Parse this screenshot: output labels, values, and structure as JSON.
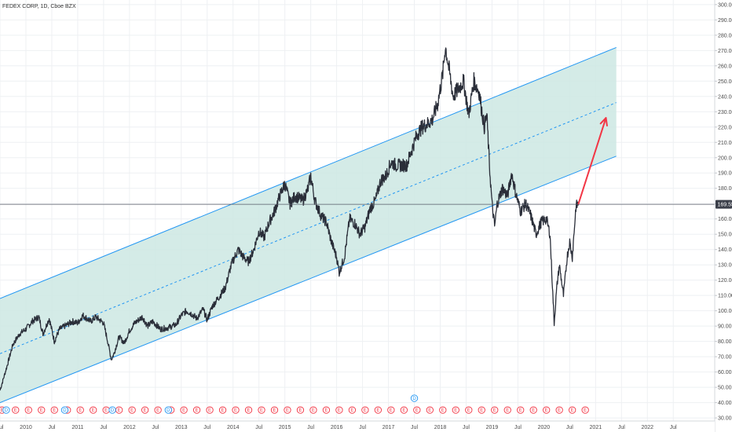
{
  "header": {
    "title": "FEDEX CORP, 1D, Cboe BZX"
  },
  "colors": {
    "channel_fill": "#cde8e3",
    "channel_line": "#2196f3",
    "price_line": "#2a2e39",
    "arrow": "#f23645",
    "grid": "#eef0f3",
    "event_ring": "#f23645",
    "dividend_ring": "#2196f3"
  },
  "chart_data": {
    "type": "line",
    "title": "FEDEX CORP, 1D, Cboe BZX",
    "xlabel": "",
    "ylabel": "",
    "ylim": [
      28,
      303
    ],
    "xlim": [
      2009.5,
      2023.3
    ],
    "y_ticks": [
      "30.00",
      "40.00",
      "50.00",
      "60.00",
      "70.00",
      "80.00",
      "90.00",
      "100.00",
      "110.00",
      "120.00",
      "130.00",
      "140.00",
      "150.00",
      "160.00",
      "170.00",
      "180.00",
      "190.00",
      "200.00",
      "210.00",
      "220.00",
      "230.00",
      "240.00",
      "250.00",
      "260.00",
      "270.00",
      "280.00",
      "290.00",
      "300.00"
    ],
    "x_ticks": [
      {
        "label": "Jul",
        "t": 2009.5
      },
      {
        "label": "2010",
        "t": 2010.0
      },
      {
        "label": "Jul",
        "t": 2010.5
      },
      {
        "label": "2011",
        "t": 2011.0
      },
      {
        "label": "Jul",
        "t": 2011.5
      },
      {
        "label": "2012",
        "t": 2012.0
      },
      {
        "label": "Jul",
        "t": 2012.5
      },
      {
        "label": "2013",
        "t": 2013.0
      },
      {
        "label": "Jul",
        "t": 2013.5
      },
      {
        "label": "2014",
        "t": 2014.0
      },
      {
        "label": "Jul",
        "t": 2014.5
      },
      {
        "label": "2015",
        "t": 2015.0
      },
      {
        "label": "Jul",
        "t": 2015.5
      },
      {
        "label": "2016",
        "t": 2016.0
      },
      {
        "label": "Jul",
        "t": 2016.5
      },
      {
        "label": "2017",
        "t": 2017.0
      },
      {
        "label": "Jul",
        "t": 2017.5
      },
      {
        "label": "2018",
        "t": 2018.0
      },
      {
        "label": "Jul",
        "t": 2018.5
      },
      {
        "label": "2019",
        "t": 2019.0
      },
      {
        "label": "Jul",
        "t": 2019.5
      },
      {
        "label": "2020",
        "t": 2020.0
      },
      {
        "label": "Jul",
        "t": 2020.5
      },
      {
        "label": "2021",
        "t": 2021.0
      },
      {
        "label": "Jul",
        "t": 2021.5
      },
      {
        "label": "2022",
        "t": 2022.0
      },
      {
        "label": "Jul",
        "t": 2022.5
      }
    ],
    "last_price": {
      "label": "169.55",
      "value": 169.55
    },
    "series": [
      {
        "points": [
          [
            2009.5,
            48
          ],
          [
            2009.62,
            62
          ],
          [
            2009.75,
            78
          ],
          [
            2009.88,
            85
          ],
          [
            2010.0,
            88
          ],
          [
            2010.12,
            93
          ],
          [
            2010.25,
            96
          ],
          [
            2010.33,
            85
          ],
          [
            2010.45,
            95
          ],
          [
            2010.55,
            80
          ],
          [
            2010.65,
            88
          ],
          [
            2010.75,
            90
          ],
          [
            2010.9,
            93
          ],
          [
            2011.0,
            92
          ],
          [
            2011.1,
            97
          ],
          [
            2011.25,
            93
          ],
          [
            2011.35,
            96
          ],
          [
            2011.5,
            92
          ],
          [
            2011.58,
            80
          ],
          [
            2011.65,
            68
          ],
          [
            2011.7,
            72
          ],
          [
            2011.8,
            83
          ],
          [
            2011.9,
            79
          ],
          [
            2012.0,
            87
          ],
          [
            2012.1,
            92
          ],
          [
            2012.25,
            96
          ],
          [
            2012.35,
            90
          ],
          [
            2012.45,
            93
          ],
          [
            2012.6,
            88
          ],
          [
            2012.75,
            89
          ],
          [
            2012.9,
            91
          ],
          [
            2013.0,
            97
          ],
          [
            2013.1,
            100
          ],
          [
            2013.2,
            98
          ],
          [
            2013.3,
            95
          ],
          [
            2013.42,
            101
          ],
          [
            2013.5,
            94
          ],
          [
            2013.6,
            103
          ],
          [
            2013.75,
            110
          ],
          [
            2013.85,
            115
          ],
          [
            2013.95,
            128
          ],
          [
            2014.0,
            133
          ],
          [
            2014.1,
            140
          ],
          [
            2014.2,
            135
          ],
          [
            2014.3,
            132
          ],
          [
            2014.4,
            140
          ],
          [
            2014.5,
            152
          ],
          [
            2014.6,
            148
          ],
          [
            2014.7,
            158
          ],
          [
            2014.8,
            165
          ],
          [
            2014.9,
            175
          ],
          [
            2015.0,
            183
          ],
          [
            2015.1,
            170
          ],
          [
            2015.2,
            175
          ],
          [
            2015.35,
            172
          ],
          [
            2015.45,
            180
          ],
          [
            2015.5,
            188
          ],
          [
            2015.58,
            172
          ],
          [
            2015.7,
            162
          ],
          [
            2015.8,
            158
          ],
          [
            2015.9,
            145
          ],
          [
            2016.0,
            135
          ],
          [
            2016.05,
            125
          ],
          [
            2016.15,
            135
          ],
          [
            2016.25,
            160
          ],
          [
            2016.35,
            157
          ],
          [
            2016.45,
            150
          ],
          [
            2016.55,
            155
          ],
          [
            2016.65,
            167
          ],
          [
            2016.75,
            172
          ],
          [
            2016.85,
            185
          ],
          [
            2016.95,
            188
          ],
          [
            2017.05,
            197
          ],
          [
            2017.15,
            195
          ],
          [
            2017.25,
            195
          ],
          [
            2017.35,
            195
          ],
          [
            2017.45,
            205
          ],
          [
            2017.55,
            215
          ],
          [
            2017.65,
            220
          ],
          [
            2017.75,
            222
          ],
          [
            2017.85,
            225
          ],
          [
            2017.95,
            235
          ],
          [
            2018.05,
            255
          ],
          [
            2018.1,
            273
          ],
          [
            2018.15,
            262
          ],
          [
            2018.25,
            240
          ],
          [
            2018.35,
            245
          ],
          [
            2018.45,
            250
          ],
          [
            2018.55,
            228
          ],
          [
            2018.65,
            250
          ],
          [
            2018.75,
            243
          ],
          [
            2018.85,
            220
          ],
          [
            2018.9,
            228
          ],
          [
            2018.95,
            195
          ],
          [
            2019.0,
            170
          ],
          [
            2019.05,
            155
          ],
          [
            2019.1,
            170
          ],
          [
            2019.2,
            180
          ],
          [
            2019.3,
            175
          ],
          [
            2019.38,
            190
          ],
          [
            2019.45,
            178
          ],
          [
            2019.55,
            165
          ],
          [
            2019.65,
            170
          ],
          [
            2019.75,
            162
          ],
          [
            2019.85,
            150
          ],
          [
            2019.95,
            158
          ],
          [
            2020.05,
            160
          ],
          [
            2020.12,
            150
          ],
          [
            2020.2,
            92
          ],
          [
            2020.25,
            115
          ],
          [
            2020.3,
            130
          ],
          [
            2020.38,
            110
          ],
          [
            2020.45,
            135
          ],
          [
            2020.5,
            145
          ],
          [
            2020.55,
            135
          ],
          [
            2020.62,
            168
          ],
          [
            2020.67,
            170
          ]
        ]
      }
    ],
    "channel": {
      "start": {
        "t": 2009.5,
        "upper": 108,
        "mid": 72,
        "lower": 40
      },
      "end": {
        "t": 2021.4,
        "upper": 272,
        "mid": 236,
        "lower": 201
      }
    },
    "arrow": {
      "from": [
        2020.67,
        170
      ],
      "to": [
        2021.2,
        226
      ]
    },
    "event_times": [
      2009.54,
      2009.8,
      2010.05,
      2010.3,
      2010.55,
      2010.8,
      2011.05,
      2011.3,
      2011.55,
      2011.8,
      2012.05,
      2012.3,
      2012.55,
      2012.8,
      2013.05,
      2013.3,
      2013.55,
      2013.8,
      2014.05,
      2014.3,
      2014.55,
      2014.8,
      2015.05,
      2015.3,
      2015.55,
      2015.8,
      2016.05,
      2016.3,
      2016.55,
      2016.8,
      2017.05,
      2017.3,
      2017.55,
      2017.8,
      2018.05,
      2018.3,
      2018.55,
      2018.8,
      2019.05,
      2019.3,
      2019.55,
      2019.8,
      2020.05,
      2020.3,
      2020.55,
      2020.8
    ],
    "event_label": "E",
    "dividend_times": [
      2009.62,
      2010.75,
      2011.67,
      2012.75
    ],
    "dividend_label": "D",
    "dividend_top_t": 2017.5
  }
}
